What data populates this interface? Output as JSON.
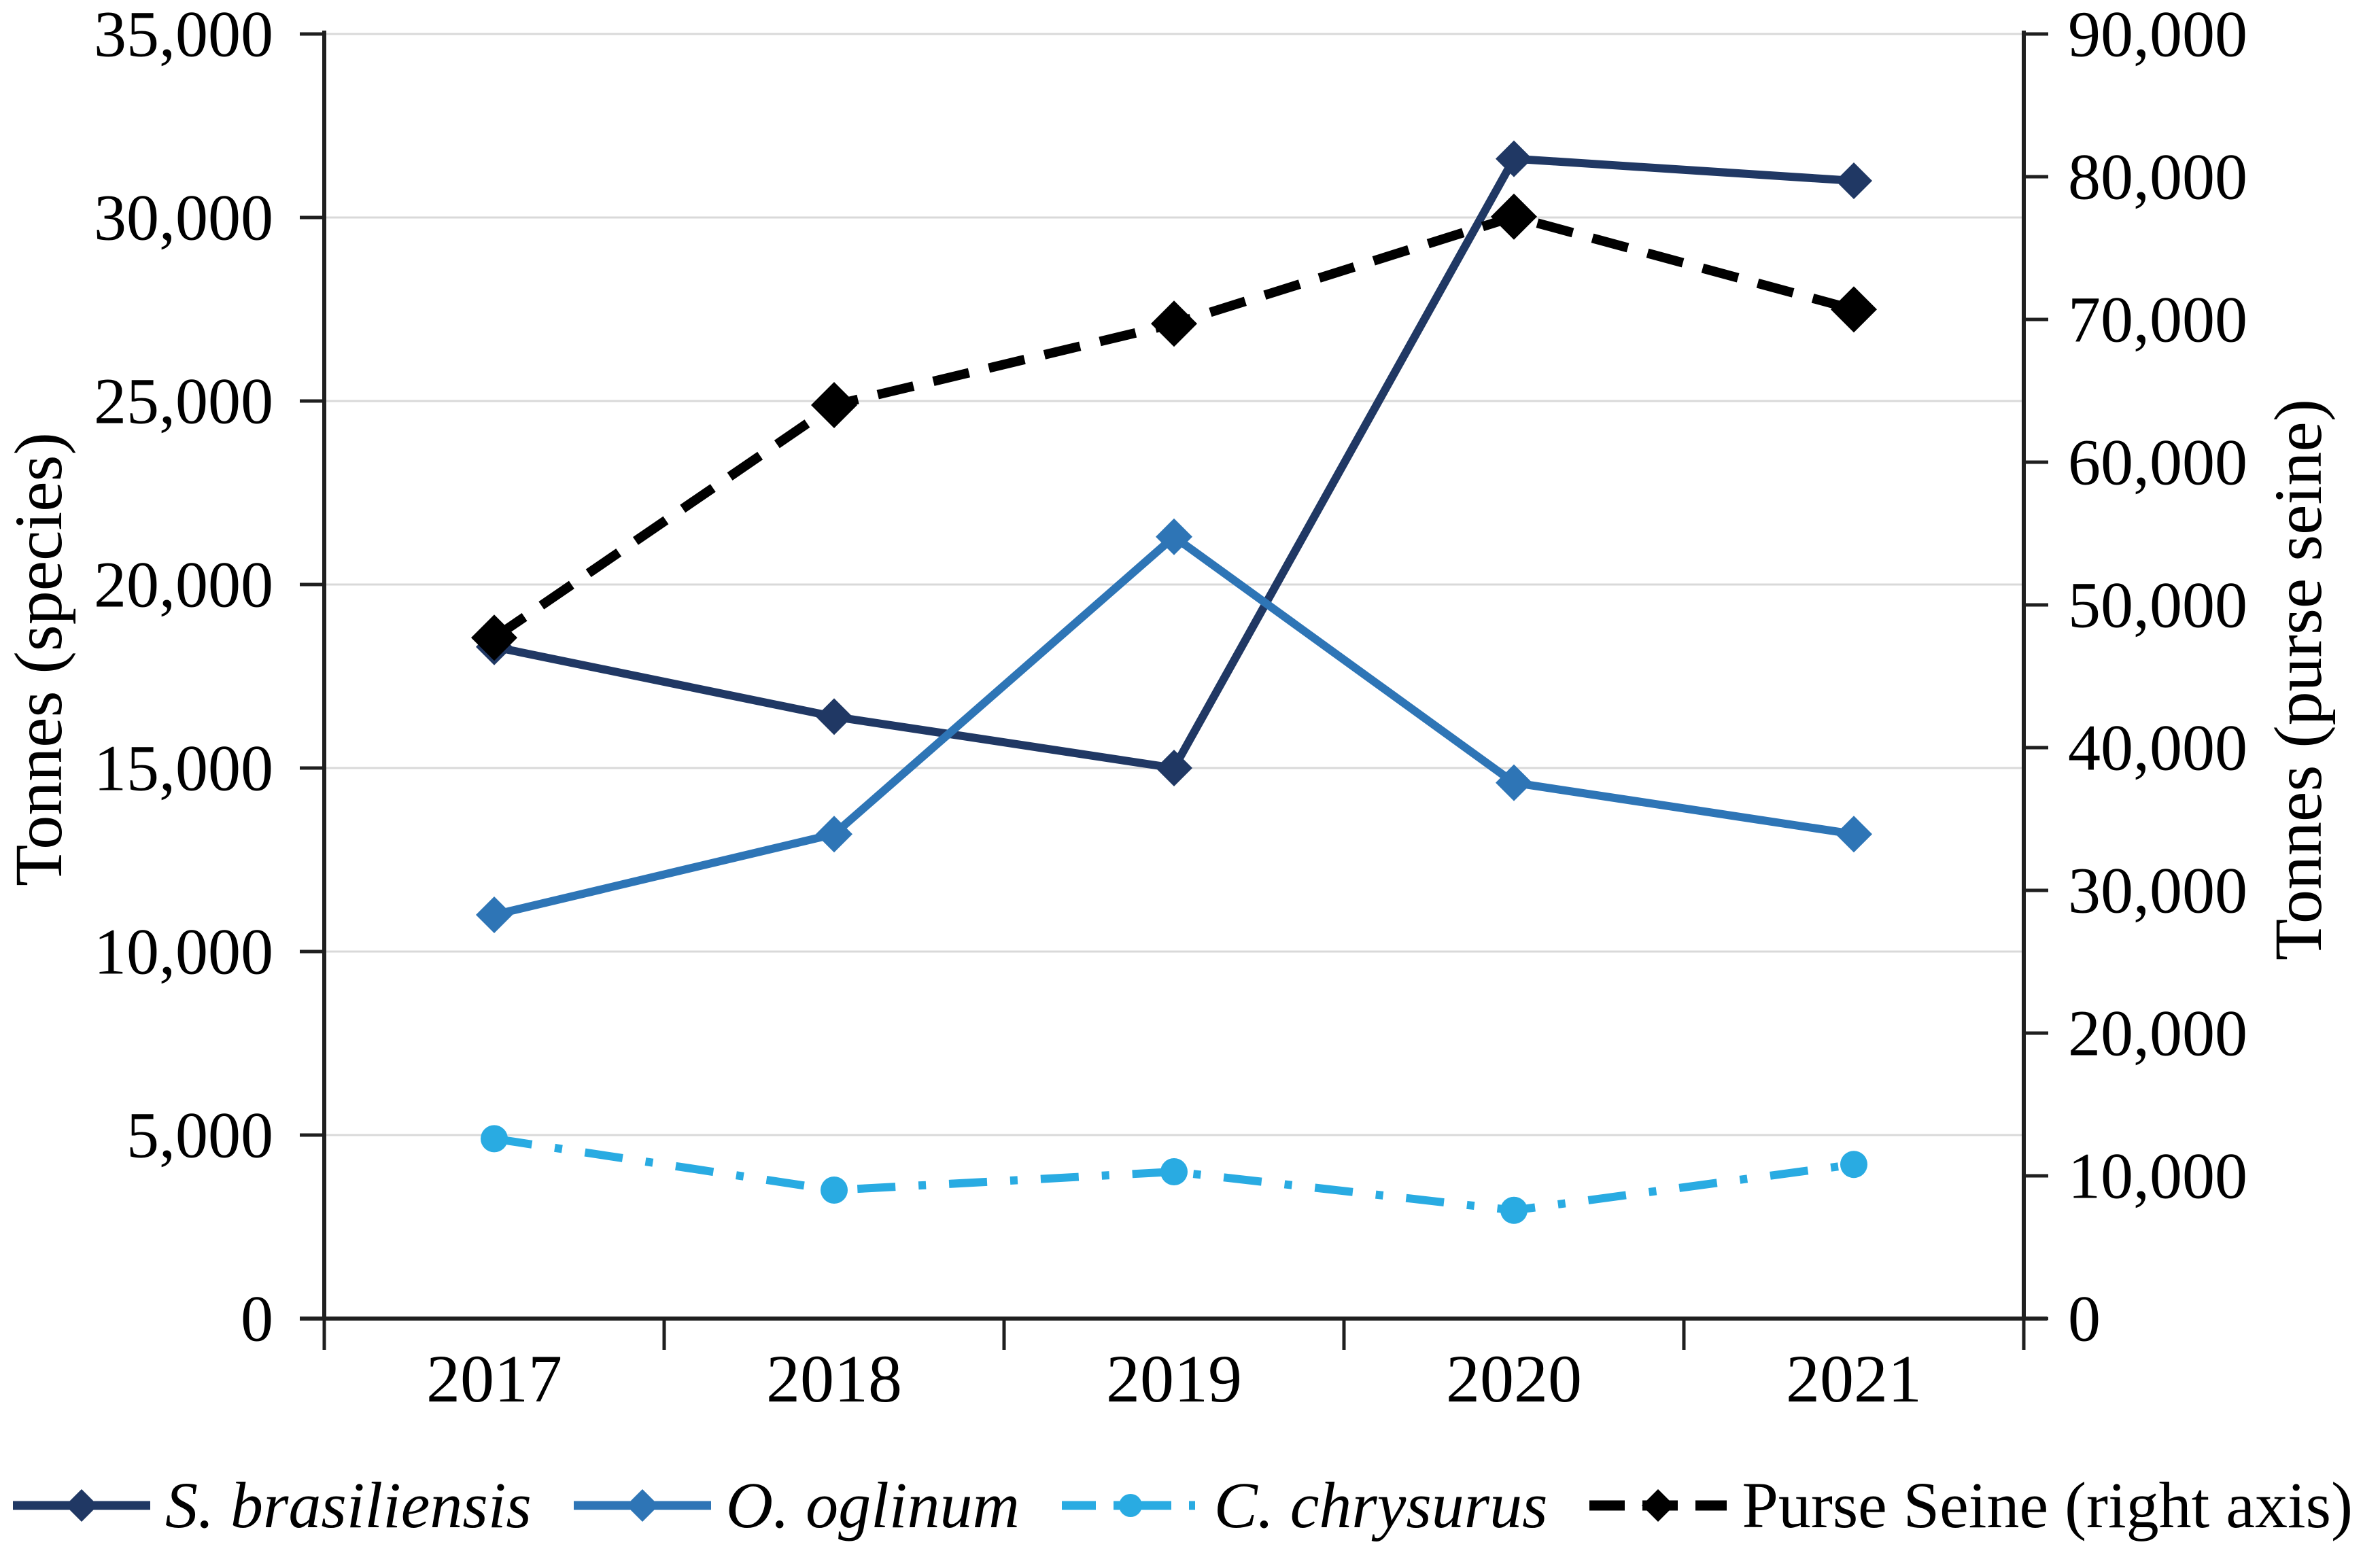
{
  "figure": {
    "background": "#ffffff",
    "left_axis_title": "Tonnes (species)",
    "right_axis_title": "Tonnes (purse seine)"
  },
  "chart_data": {
    "type": "line",
    "title": "",
    "grid": true,
    "grid_color": "#d9d9d9",
    "axis_color": "#1f1f1f",
    "legend_position": "bottom",
    "categories": [
      "2017",
      "2018",
      "2019",
      "2020",
      "2021"
    ],
    "left_axis": {
      "label": "Tonnes (species)",
      "min": 0,
      "max": 35000,
      "tick_interval": 5000,
      "tick_labels": [
        "0",
        "5,000",
        "10,000",
        "15,000",
        "20,000",
        "25,000",
        "30,000",
        "35,000"
      ]
    },
    "right_axis": {
      "label": "Tonnes (purse seine)",
      "min": 0,
      "max": 90000,
      "tick_interval": 10000,
      "tick_labels": [
        "0",
        "10,000",
        "20,000",
        "30,000",
        "40,000",
        "50,000",
        "60,000",
        "70,000",
        "80,000",
        "90,000"
      ]
    },
    "series": [
      {
        "name": "S. brasiliensis",
        "italic_name": true,
        "axis": "left",
        "color": "#203864",
        "style": "solid",
        "marker": "diamond",
        "values": [
          18300,
          16400,
          15000,
          31600,
          31000
        ]
      },
      {
        "name": "O. oglinum",
        "italic_name": true,
        "axis": "left",
        "color": "#2e75b6",
        "style": "solid",
        "marker": "diamond",
        "values": [
          11000,
          13200,
          21300,
          14600,
          13200
        ]
      },
      {
        "name": "C. chrysurus",
        "italic_name": true,
        "axis": "left",
        "color": "#29abe2",
        "style": "dashdot",
        "marker": "circle",
        "values": [
          4900,
          3500,
          4000,
          2950,
          4200
        ]
      },
      {
        "name": "Purse Seine (right axis)",
        "italic_name": false,
        "axis": "right",
        "color": "#000000",
        "style": "dashed",
        "marker": "diamond",
        "values": [
          47700,
          64000,
          69700,
          77200,
          70700
        ]
      }
    ]
  }
}
